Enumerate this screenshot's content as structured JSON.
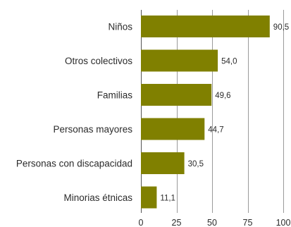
{
  "chart_data": {
    "type": "bar",
    "orientation": "horizontal",
    "title": "",
    "xlabel": "",
    "ylabel": "",
    "categories": [
      "Niños",
      "Otros colectivos",
      "Familias",
      "Personas mayores",
      "Personas con discapacidad",
      "Minorias étnicas"
    ],
    "values": [
      90.5,
      54.0,
      49.6,
      44.7,
      30.5,
      11.1
    ],
    "value_labels": [
      "90,5",
      "54,0",
      "49,6",
      "44,7",
      "30,5",
      "11,1"
    ],
    "xlim": [
      0,
      100
    ],
    "xticks": [
      0,
      25,
      50,
      75,
      100
    ],
    "xtick_labels": [
      "0",
      "25",
      "50",
      "75",
      "100"
    ],
    "grid": "vertical",
    "legend": "none",
    "bar_color": "#808000"
  }
}
